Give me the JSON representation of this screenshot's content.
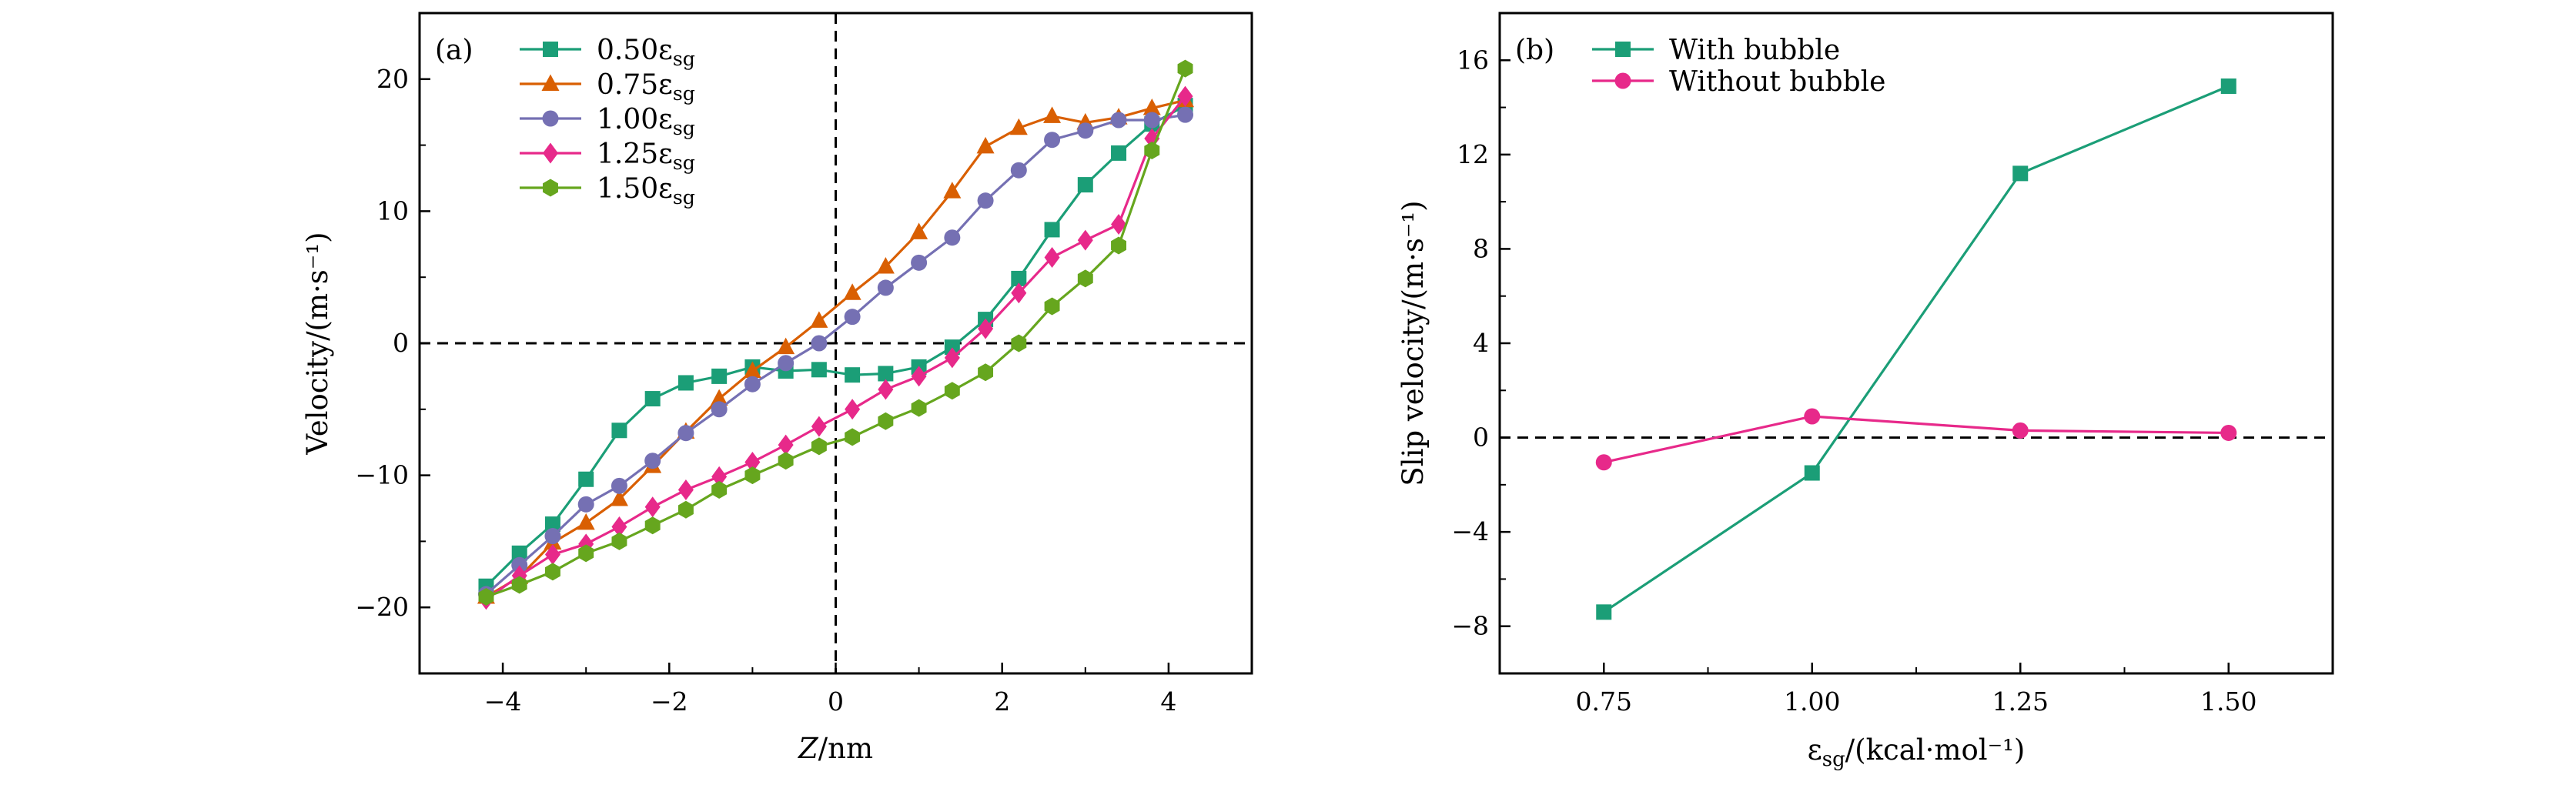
{
  "chart_data": [
    {
      "type": "line",
      "panel_label": "(a)",
      "xlabel_italic": "Z",
      "xlabel_rest": "/nm",
      "ylabel": "Velocity/(m·s⁻¹)",
      "xlim": [
        -5,
        5
      ],
      "ylim": [
        -25,
        25
      ],
      "xticks": [
        -4,
        -2,
        0,
        2,
        4
      ],
      "xtick_labels": [
        "−4",
        "−2",
        "0",
        "2",
        "4"
      ],
      "yticks": [
        -20,
        -10,
        0,
        10,
        20
      ],
      "ytick_labels": [
        "−20",
        "−10",
        "0",
        "10",
        "20"
      ],
      "grid": false,
      "reference_lines": {
        "x": 0,
        "y": 0,
        "style": "dashed"
      },
      "legend_position": "top-left",
      "x": [
        -4.2,
        -3.8,
        -3.4,
        -3.0,
        -2.6,
        -2.2,
        -1.8,
        -1.4,
        -1.0,
        -0.6,
        -0.2,
        0.2,
        0.6,
        1.0,
        1.4,
        1.8,
        2.2,
        2.6,
        3.0,
        3.4,
        3.8,
        4.2
      ],
      "series": [
        {
          "name": "0.50εsg",
          "color": "#1b9e77",
          "marker": "square",
          "values": [
            -18.4,
            -15.9,
            -13.7,
            -10.3,
            -6.6,
            -4.2,
            -3.0,
            -2.5,
            -1.8,
            -2.1,
            -2.0,
            -2.4,
            -2.3,
            -1.8,
            -0.3,
            1.8,
            4.9,
            8.6,
            12.0,
            14.4,
            16.6,
            18.0
          ]
        },
        {
          "name": "0.75εsg",
          "color": "#d95f02",
          "marker": "triangle",
          "values": [
            -19.2,
            -17.7,
            -15.1,
            -13.6,
            -11.8,
            -9.3,
            -6.7,
            -4.2,
            -2.1,
            -0.3,
            1.7,
            3.8,
            5.8,
            8.4,
            11.5,
            14.9,
            16.3,
            17.2,
            16.7,
            17.1,
            17.8,
            18.4
          ]
        },
        {
          "name": "1.00εsg",
          "color": "#7570b3",
          "marker": "circle",
          "values": [
            -19.0,
            -16.8,
            -14.6,
            -12.2,
            -10.8,
            -8.9,
            -6.8,
            -5.0,
            -3.1,
            -1.5,
            0.0,
            2.0,
            4.2,
            6.1,
            8.0,
            10.8,
            13.1,
            15.4,
            16.1,
            16.9,
            16.9,
            17.3
          ]
        },
        {
          "name": "1.25εsg",
          "color": "#e7298a",
          "marker": "diamond",
          "values": [
            -19.4,
            -17.6,
            -16.0,
            -15.2,
            -13.9,
            -12.4,
            -11.1,
            -10.1,
            -9.0,
            -7.7,
            -6.3,
            -5.0,
            -3.5,
            -2.5,
            -1.1,
            1.1,
            3.8,
            6.5,
            7.8,
            9.0,
            15.5,
            18.7
          ]
        },
        {
          "name": "1.50εsg",
          "color": "#66a61e",
          "marker": "hexagon",
          "values": [
            -19.2,
            -18.3,
            -17.3,
            -15.9,
            -15.0,
            -13.8,
            -12.6,
            -11.1,
            -10.0,
            -8.9,
            -7.8,
            -7.1,
            -5.9,
            -4.9,
            -3.6,
            -2.2,
            0.0,
            2.8,
            4.9,
            7.4,
            14.6,
            20.8
          ]
        }
      ]
    },
    {
      "type": "line",
      "panel_label": "(b)",
      "xlabel": "εsg/(kcal·mol⁻¹)",
      "ylabel": "Slip velocity/(m·s⁻¹)",
      "xlim": [
        0.625,
        1.625
      ],
      "ylim": [
        -10,
        18
      ],
      "xticks": [
        0.75,
        1.0,
        1.25,
        1.5
      ],
      "xtick_labels": [
        "0.75",
        "1.00",
        "1.25",
        "1.50"
      ],
      "yticks": [
        -8,
        -4,
        0,
        4,
        8,
        12,
        16
      ],
      "ytick_labels": [
        "−8",
        "−4",
        "0",
        "4",
        "8",
        "12",
        "16"
      ],
      "grid": false,
      "reference_lines": {
        "y": 0,
        "style": "dashed"
      },
      "legend_position": "top-left",
      "x": [
        0.75,
        1.0,
        1.25,
        1.5
      ],
      "series": [
        {
          "name": "With bubble",
          "color": "#1b9e77",
          "marker": "square",
          "values": [
            -7.4,
            -1.5,
            11.2,
            14.9
          ]
        },
        {
          "name": "Without bubble",
          "color": "#e7298a",
          "marker": "circle",
          "values": [
            -1.05,
            0.9,
            0.3,
            0.2
          ]
        }
      ]
    }
  ]
}
